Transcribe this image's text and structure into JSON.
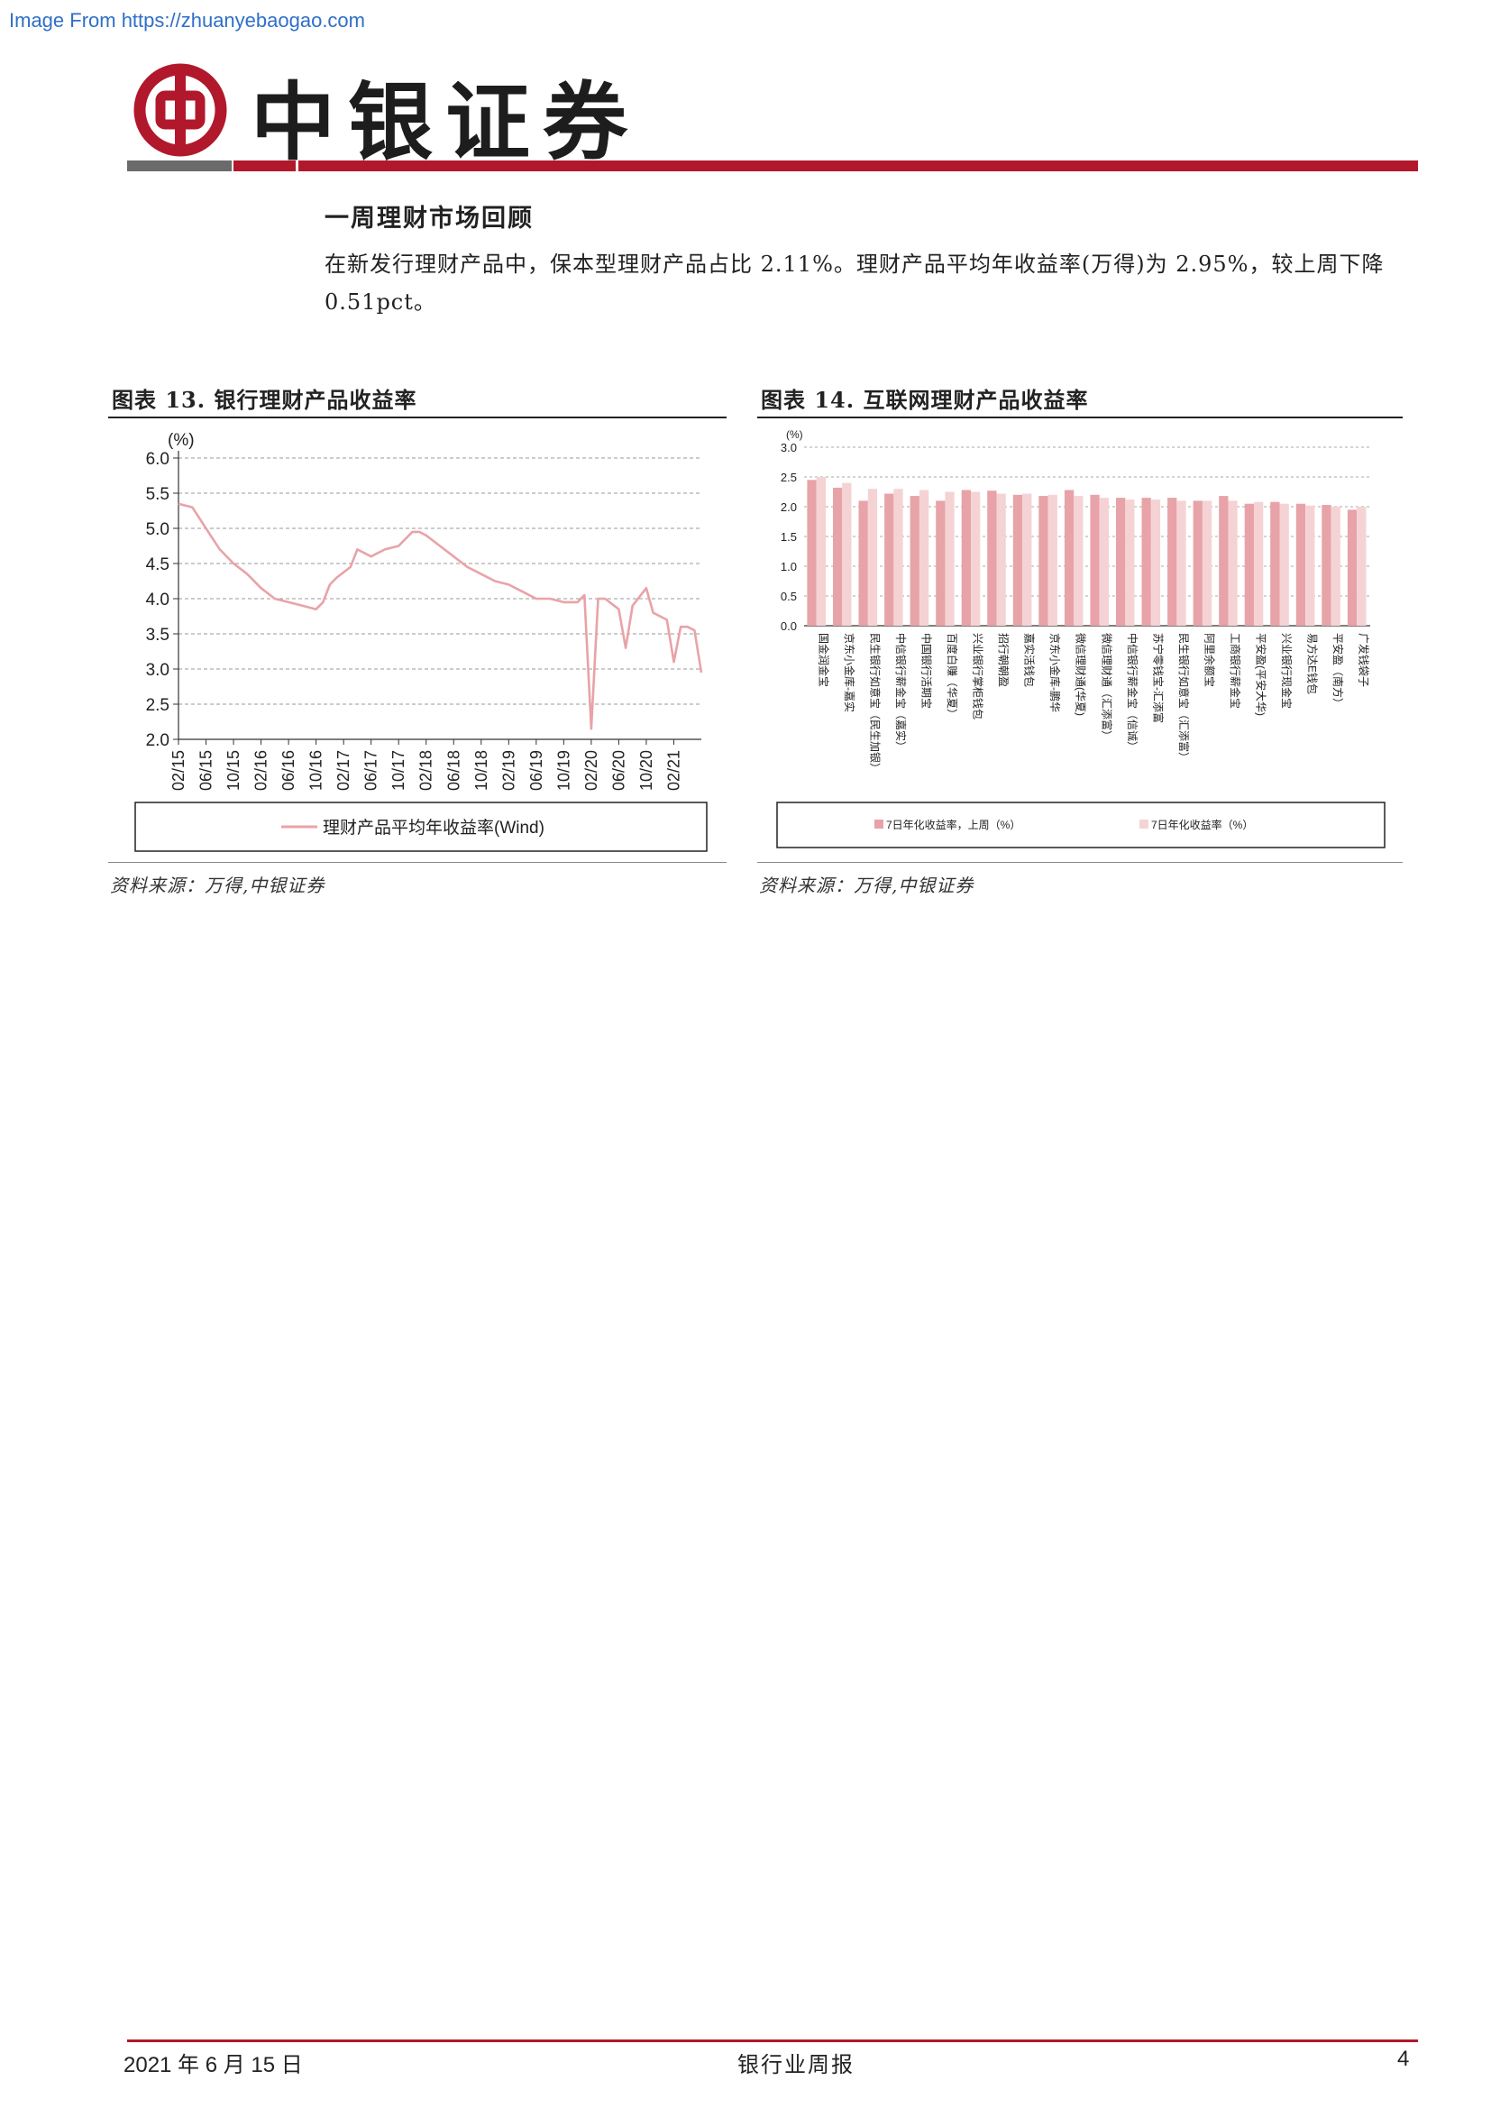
{
  "watermark": "Image From https://zhuanyebaogao.com",
  "header": {
    "brand": "中银证券",
    "colors": {
      "accent_red": "#b2182b",
      "gray": "#6b6b6b"
    }
  },
  "section": {
    "title": "一周理财市场回顾",
    "paragraph": "在新发行理财产品中，保本型理财产品占比 2.11%。理财产品平均年收益率(万得)为 2.95%，较上周下降 0.51pct。"
  },
  "figures": [
    {
      "title": "图表 13. 银行理财产品收益率",
      "source": "资料来源：万得,中银证券",
      "chart_data": {
        "type": "line",
        "ylabel": "(%)",
        "ylim": [
          2.0,
          6.0
        ],
        "yticks": [
          "6.0",
          "5.5",
          "5.0",
          "4.5",
          "4.0",
          "3.5",
          "3.0",
          "2.5",
          "2.0"
        ],
        "xticks": [
          "02/15",
          "06/15",
          "10/15",
          "02/16",
          "06/16",
          "10/16",
          "02/17",
          "06/17",
          "10/17",
          "02/18",
          "06/18",
          "10/18",
          "02/19",
          "06/19",
          "10/19",
          "02/20",
          "06/20",
          "10/20",
          "02/21"
        ],
        "grid": true,
        "legend_position": "bottom",
        "color": "#e8a3a8",
        "series": [
          {
            "name": "理财产品平均年收益率(Wind)",
            "x": [
              "2015-02",
              "2015-04",
              "2015-06",
              "2015-08",
              "2015-10",
              "2015-12",
              "2016-02",
              "2016-04",
              "2016-06",
              "2016-08",
              "2016-10",
              "2016-11",
              "2016-12",
              "2017-01",
              "2017-03",
              "2017-04",
              "2017-06",
              "2017-08",
              "2017-10",
              "2017-12",
              "2018-01",
              "2018-02",
              "2018-04",
              "2018-06",
              "2018-08",
              "2018-10",
              "2018-12",
              "2019-02",
              "2019-04",
              "2019-06",
              "2019-08",
              "2019-10",
              "2019-12",
              "2020-01",
              "2020-02",
              "2020-03",
              "2020-04",
              "2020-06",
              "2020-07",
              "2020-08",
              "2020-10",
              "2020-11",
              "2020-12",
              "2021-01",
              "2021-02",
              "2021-03",
              "2021-04",
              "2021-05",
              "2021-06"
            ],
            "y": [
              5.35,
              5.3,
              5.0,
              4.7,
              4.5,
              4.35,
              4.15,
              4.0,
              3.95,
              3.9,
              3.85,
              3.95,
              4.2,
              4.3,
              4.45,
              4.7,
              4.6,
              4.7,
              4.75,
              4.95,
              4.95,
              4.9,
              4.75,
              4.6,
              4.45,
              4.35,
              4.25,
              4.2,
              4.1,
              4.0,
              4.0,
              3.95,
              3.95,
              4.05,
              2.15,
              4.0,
              4.0,
              3.85,
              3.3,
              3.9,
              4.15,
              3.8,
              3.75,
              3.7,
              3.1,
              3.6,
              3.6,
              3.55,
              2.95
            ]
          }
        ]
      }
    },
    {
      "title": "图表 14. 互联网理财产品收益率",
      "source": "资料来源：万得,中银证券",
      "chart_data": {
        "type": "bar",
        "ylabel": "(%)",
        "ylim": [
          0.0,
          3.0
        ],
        "yticks": [
          "3.0",
          "2.5",
          "2.0",
          "1.5",
          "1.0",
          "0.5",
          "0.0"
        ],
        "grid": true,
        "legend_position": "bottom",
        "categories": [
          "国金润金宝",
          "京东小金库-嘉实",
          "民生银行如意宝（民生加银）",
          "中信银行薪金宝（嘉实）",
          "中国银行活期宝",
          "百度白赚（华夏）",
          "兴业银行掌柜钱包",
          "招行朝朝盈",
          "嘉实活钱包",
          "京东小金库-鹏华",
          "微信理财通(华夏)",
          "微信理财通（汇添富）",
          "中信银行薪金宝（信诚）",
          "苏宁零钱宝-汇添富",
          "民生银行如意宝（汇添富）",
          "阿里余额宝",
          "工商银行薪金宝",
          "平安盈(平安大华)",
          "兴业银行现金宝",
          "易方达E钱包",
          "平安盈（南方）",
          "广发钱袋子"
        ],
        "series": [
          {
            "name": "7日年化收益率，上周（%）",
            "color": "#e8a3a8",
            "values": [
              2.45,
              2.32,
              2.1,
              2.22,
              2.18,
              2.1,
              2.28,
              2.27,
              2.2,
              2.18,
              2.28,
              2.2,
              2.15,
              2.15,
              2.15,
              2.1,
              2.18,
              2.05,
              2.08,
              2.05,
              2.03,
              1.95
            ]
          },
          {
            "name": "7日年化收益率（%）",
            "color": "#f5d3d5",
            "values": [
              2.5,
              2.4,
              2.3,
              2.3,
              2.28,
              2.25,
              2.25,
              2.22,
              2.22,
              2.2,
              2.18,
              2.15,
              2.12,
              2.12,
              2.1,
              2.1,
              2.1,
              2.08,
              2.05,
              2.02,
              2.0,
              2.0
            ]
          }
        ]
      }
    }
  ],
  "footer": {
    "date": "2021 年 6 月 15 日",
    "center": "银行业周报",
    "page": "4"
  }
}
